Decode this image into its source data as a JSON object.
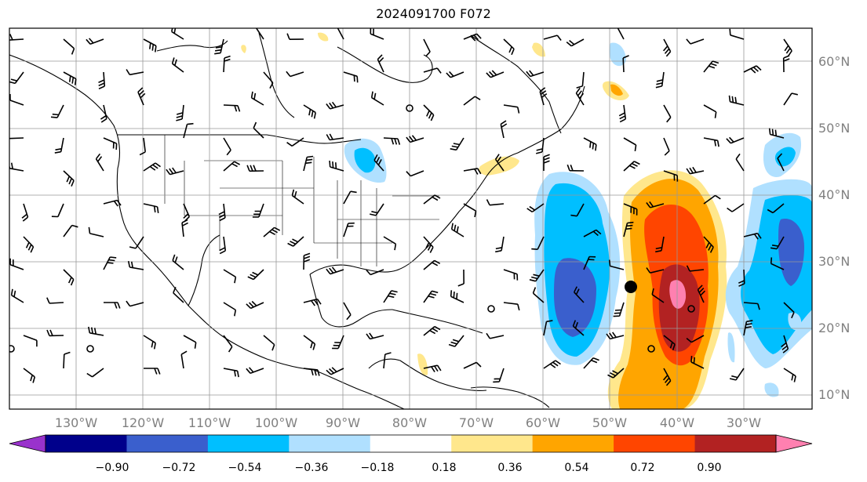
{
  "title": "2024091700 F072",
  "longitude_labels": [
    "130°W",
    "120°W",
    "110°W",
    "100°W",
    "90°W",
    "80°W",
    "70°W",
    "60°W",
    "50°W",
    "40°W",
    "30°W"
  ],
  "latitude_labels": [
    "60°N",
    "50°N",
    "40°N",
    "30°N",
    "20°N",
    "10°N"
  ],
  "colorbar": {
    "ticks": [
      "−0.90",
      "−0.72",
      "−0.54",
      "−0.36",
      "−0.18",
      "0.18",
      "0.36",
      "0.54",
      "0.72",
      "0.90"
    ],
    "colors": [
      "#9932cc",
      "#00008b",
      "#3a5fcd",
      "#00bfff",
      "#b0e0ff",
      "#ffffff",
      "#ffe78c",
      "#ffa500",
      "#ff4500",
      "#b22222",
      "#ff80b0"
    ]
  }
}
